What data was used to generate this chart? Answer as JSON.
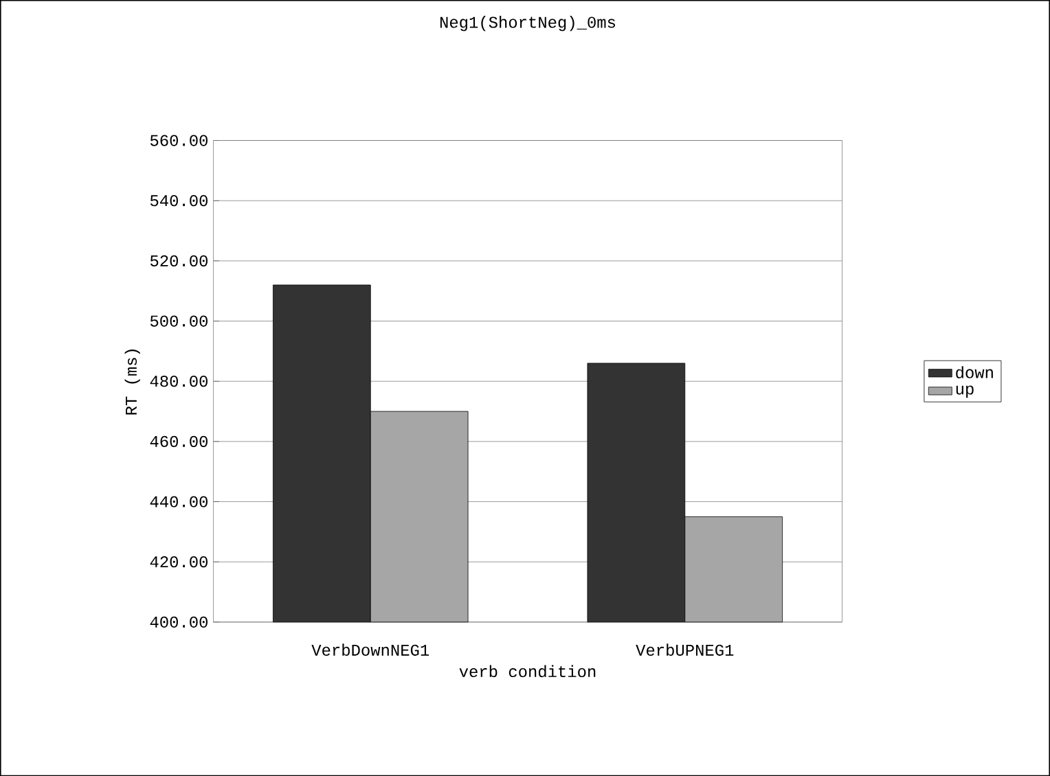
{
  "chart_data": {
    "type": "bar",
    "title": "Neg1(ShortNeg)_0ms",
    "xlabel": "verb condition",
    "ylabel": "RT (ms)",
    "categories": [
      "VerbDownNEG1",
      "VerbUPNEG1"
    ],
    "series": [
      {
        "name": "down",
        "color": "#333333",
        "values": [
          512,
          486
        ]
      },
      {
        "name": "up",
        "color": "#a6a6a6",
        "values": [
          470,
          435
        ]
      }
    ],
    "ylim": [
      400,
      560
    ],
    "yticks": [
      {
        "value": 400,
        "label": "400.00"
      },
      {
        "value": 420,
        "label": "420.00"
      },
      {
        "value": 440,
        "label": "440.00"
      },
      {
        "value": 460,
        "label": "460.00"
      },
      {
        "value": 480,
        "label": "480.00"
      },
      {
        "value": 500,
        "label": "500.00"
      },
      {
        "value": 520,
        "label": "520.00"
      },
      {
        "value": 540,
        "label": "540.00"
      },
      {
        "value": 560,
        "label": "560.00"
      }
    ],
    "grid": "y",
    "legend": "right"
  }
}
